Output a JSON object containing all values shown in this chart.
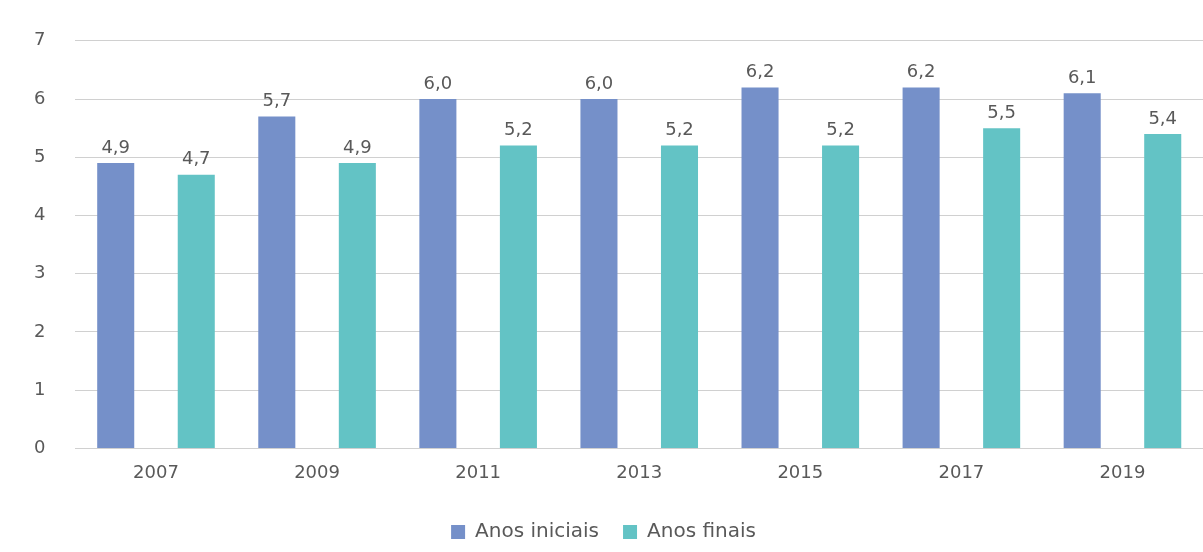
{
  "chart_data": {
    "type": "bar",
    "categories": [
      "2007",
      "2009",
      "2011",
      "2013",
      "2015",
      "2017",
      "2019"
    ],
    "series": [
      {
        "name": "Anos iniciais",
        "color": "#7590c9",
        "values": [
          4.9,
          5.7,
          6.0,
          6.0,
          6.2,
          6.2,
          6.1
        ],
        "value_labels": [
          "4,9",
          "5,7",
          "6,0",
          "6,0",
          "6,2",
          "6,2",
          "6,1"
        ]
      },
      {
        "name": "Anos finais",
        "color": "#63c3c5",
        "values": [
          4.7,
          4.9,
          5.2,
          5.2,
          5.2,
          5.5,
          5.4
        ],
        "value_labels": [
          "4,7",
          "4,9",
          "5,2",
          "5,2",
          "5,2",
          "5,5",
          "5,4"
        ]
      }
    ],
    "ylim": [
      0,
      7
    ],
    "yticks": [
      0,
      1,
      2,
      3,
      4,
      5,
      6,
      7
    ],
    "grid": "y",
    "legend": "bottom"
  }
}
